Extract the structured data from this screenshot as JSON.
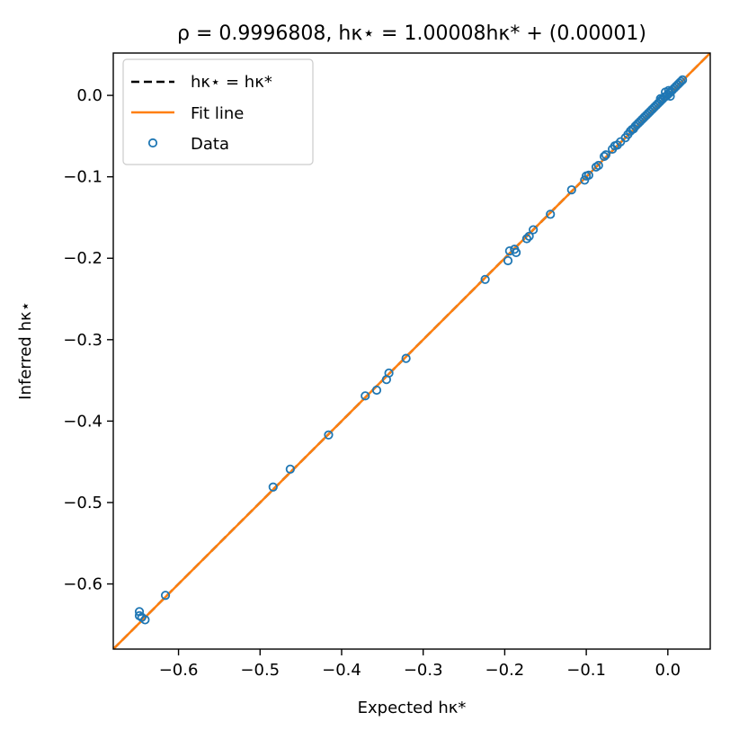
{
  "chart_data": {
    "type": "scatter",
    "title": "ρ = 0.9996808,   hκ⋆ = 1.00008hκ* + (0.00001)",
    "xlabel": "Expected hκ*",
    "ylabel": "Inferred hκ⋆",
    "xlim": [
      -0.68,
      0.052
    ],
    "ylim": [
      -0.68,
      0.052
    ],
    "xticks": [
      -0.6,
      -0.5,
      -0.4,
      -0.3,
      -0.2,
      -0.1,
      0.0
    ],
    "yticks": [
      -0.6,
      -0.5,
      -0.4,
      -0.3,
      -0.2,
      -0.1,
      0.0
    ],
    "xtick_labels": [
      "−0.6",
      "−0.5",
      "−0.4",
      "−0.3",
      "−0.2",
      "−0.1",
      "0.0"
    ],
    "ytick_labels": [
      "−0.6",
      "−0.5",
      "−0.4",
      "−0.3",
      "−0.2",
      "−0.1",
      "0.0"
    ],
    "grid": false,
    "legend_position": "top-left",
    "legend": [
      {
        "label": "hκ⋆ = hκ*",
        "style": "dashed-line",
        "color": "#000000"
      },
      {
        "label": "Fit line",
        "style": "line",
        "color": "#ff7f0e"
      },
      {
        "label": "Data",
        "style": "marker",
        "color": "#1f77b4"
      }
    ],
    "identity_line": {
      "slope": 1.0,
      "intercept": 0.0,
      "color": "#000000"
    },
    "fit_line": {
      "slope": 1.00008,
      "intercept": 1e-05,
      "color": "#ff7f0e"
    },
    "series": [
      {
        "name": "Data",
        "color": "#1f77b4",
        "points": [
          [
            -0.648,
            -0.634
          ],
          [
            -0.648,
            -0.639
          ],
          [
            -0.645,
            -0.641
          ],
          [
            -0.641,
            -0.644
          ],
          [
            -0.616,
            -0.614
          ],
          [
            -0.484,
            -0.481
          ],
          [
            -0.463,
            -0.459
          ],
          [
            -0.416,
            -0.417
          ],
          [
            -0.371,
            -0.369
          ],
          [
            -0.357,
            -0.362
          ],
          [
            -0.345,
            -0.349
          ],
          [
            -0.342,
            -0.341
          ],
          [
            -0.321,
            -0.323
          ],
          [
            -0.224,
            -0.226
          ],
          [
            -0.196,
            -0.203
          ],
          [
            -0.194,
            -0.191
          ],
          [
            -0.188,
            -0.189
          ],
          [
            -0.186,
            -0.193
          ],
          [
            -0.173,
            -0.176
          ],
          [
            -0.17,
            -0.173
          ],
          [
            -0.165,
            -0.165
          ],
          [
            -0.144,
            -0.146
          ],
          [
            -0.118,
            -0.116
          ],
          [
            -0.102,
            -0.104
          ],
          [
            -0.1,
            -0.099
          ],
          [
            -0.097,
            -0.098
          ],
          [
            -0.088,
            -0.088
          ],
          [
            -0.085,
            -0.086
          ],
          [
            -0.078,
            -0.075
          ],
          [
            -0.076,
            -0.073
          ],
          [
            -0.068,
            -0.066
          ],
          [
            -0.065,
            -0.062
          ],
          [
            -0.062,
            -0.061
          ],
          [
            -0.058,
            -0.057
          ],
          [
            -0.052,
            -0.052
          ],
          [
            -0.049,
            -0.048
          ],
          [
            -0.046,
            -0.044
          ],
          [
            -0.044,
            -0.042
          ],
          [
            -0.042,
            -0.041
          ],
          [
            -0.04,
            -0.038
          ],
          [
            -0.038,
            -0.036
          ],
          [
            -0.036,
            -0.034
          ],
          [
            -0.034,
            -0.032
          ],
          [
            -0.032,
            -0.03
          ],
          [
            -0.03,
            -0.028
          ],
          [
            -0.028,
            -0.026
          ],
          [
            -0.026,
            -0.024
          ],
          [
            -0.024,
            -0.022
          ],
          [
            -0.022,
            -0.02
          ],
          [
            -0.02,
            -0.018
          ],
          [
            -0.018,
            -0.016
          ],
          [
            -0.016,
            -0.014
          ],
          [
            -0.014,
            -0.012
          ],
          [
            -0.012,
            -0.01
          ],
          [
            -0.01,
            -0.008
          ],
          [
            -0.008,
            -0.006
          ],
          [
            -0.006,
            -0.004
          ],
          [
            -0.004,
            -0.002
          ],
          [
            -0.002,
            -0.001
          ],
          [
            0.0,
            0.001
          ],
          [
            0.002,
            0.003
          ],
          [
            0.004,
            0.005
          ],
          [
            0.006,
            0.007
          ],
          [
            0.008,
            0.009
          ],
          [
            0.01,
            0.011
          ],
          [
            0.012,
            0.013
          ],
          [
            0.014,
            0.015
          ],
          [
            0.016,
            0.017
          ],
          [
            0.018,
            0.019
          ],
          [
            -0.003,
            0.004
          ],
          [
            0.003,
            -0.001
          ],
          [
            -0.009,
            -0.004
          ],
          [
            0.001,
            0.006
          ]
        ]
      }
    ]
  }
}
